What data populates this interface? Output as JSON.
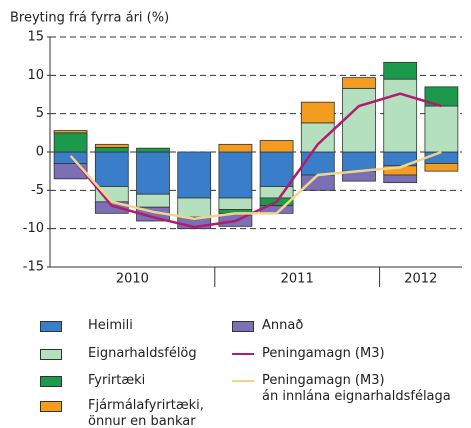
{
  "chart_data": {
    "type": "bar",
    "title": "Breyting frá fyrra ári (%)",
    "groups": [
      {
        "label": "2010",
        "count": 4
      },
      {
        "label": "2011",
        "count": 4
      },
      {
        "label": "2012",
        "count": 2
      }
    ],
    "ylim": [
      -15,
      15
    ],
    "yticks": [
      -15,
      -10,
      -5,
      0,
      5,
      10,
      15
    ],
    "grid": true,
    "series": [
      {
        "name": "Heimili",
        "color": "#3a7dc9",
        "values": [
          -1.5,
          -4.5,
          -5.5,
          -6,
          -6,
          -4.5,
          -3,
          -2.5,
          -1.8,
          -1.5
        ]
      },
      {
        "name": "Eignarhaldsfélög",
        "color": "#b5e0c0",
        "values": [
          0,
          -2,
          -1.7,
          -2.5,
          -1.5,
          -1.5,
          3.8,
          8.3,
          9.5,
          6
        ]
      },
      {
        "name": "Fyrirtæki",
        "color": "#1a9a4a",
        "values": [
          2.5,
          0.6,
          0.5,
          0,
          -0.5,
          -1,
          0,
          0,
          2.2,
          2.5
        ]
      },
      {
        "name": "Fjármálafyrirtæki,\nönnur en bankar",
        "color": "#f39c1f",
        "values": [
          0.3,
          0.4,
          0,
          0,
          1,
          1.5,
          2.7,
          1.4,
          -1.2,
          -1
        ]
      },
      {
        "name": "Annað",
        "color": "#7b6fb5",
        "values": [
          -2,
          -1.5,
          -1.8,
          -1.5,
          -1.7,
          -1,
          -2,
          -1.3,
          -1,
          0
        ]
      },
      {
        "name": "Peningamagn (M3)",
        "color": "#b01c6e",
        "type": "line",
        "values": [
          -0.5,
          -7,
          -8.5,
          -9.8,
          -9,
          -6.5,
          1,
          6,
          7.6,
          6
        ]
      },
      {
        "name": "Peningamagn (M3)\nán innlána eignarhaldsfélaga",
        "color": "#f0d58a",
        "type": "line",
        "values": [
          -0.5,
          -6.5,
          -7.8,
          -8.7,
          -8,
          -8,
          -3,
          -2.5,
          -2,
          0
        ]
      }
    ]
  }
}
